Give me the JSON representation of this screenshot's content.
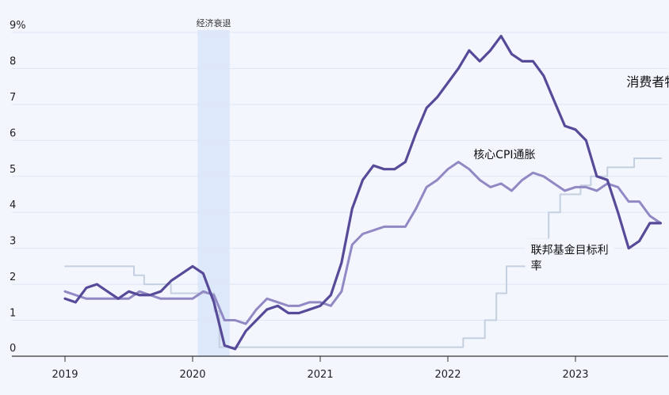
{
  "chart_data": {
    "type": "line",
    "x_unit": "year",
    "xlim": [
      2018.85,
      2023.85
    ],
    "ylim": [
      0,
      9
    ],
    "x_ticks": [
      {
        "value": 2019,
        "label": "2019"
      },
      {
        "value": 2020,
        "label": "2020"
      },
      {
        "value": 2021,
        "label": "2021"
      },
      {
        "value": 2022,
        "label": "2022"
      },
      {
        "value": 2023,
        "label": "2023"
      }
    ],
    "y_ticks": [
      {
        "value": 0,
        "label": "0"
      },
      {
        "value": 1,
        "label": "1"
      },
      {
        "value": 2,
        "label": "2"
      },
      {
        "value": 3,
        "label": "3"
      },
      {
        "value": 4,
        "label": "4"
      },
      {
        "value": 5,
        "label": "5"
      },
      {
        "value": 6,
        "label": "6"
      },
      {
        "value": 7,
        "label": "7"
      },
      {
        "value": 8,
        "label": "8"
      },
      {
        "value": 9,
        "label": "9%"
      }
    ],
    "grid": "horizontal",
    "recession": {
      "label": "经济衰退",
      "x_start": 2020.04,
      "x_end": 2020.29,
      "color": "#dde8fb"
    },
    "series": [
      {
        "name": "消费者物价指数",
        "color": "#574a99",
        "stroke": "thick",
        "step": false,
        "label_pos": [
          2023.4,
          7.5
        ],
        "label_size": "big",
        "points": [
          [
            2019.0,
            1.6
          ],
          [
            2019.083,
            1.5
          ],
          [
            2019.167,
            1.9
          ],
          [
            2019.25,
            2.0
          ],
          [
            2019.333,
            1.8
          ],
          [
            2019.417,
            1.6
          ],
          [
            2019.5,
            1.8
          ],
          [
            2019.583,
            1.7
          ],
          [
            2019.667,
            1.7
          ],
          [
            2019.75,
            1.8
          ],
          [
            2019.833,
            2.1
          ],
          [
            2019.917,
            2.3
          ],
          [
            2020.0,
            2.5
          ],
          [
            2020.083,
            2.3
          ],
          [
            2020.167,
            1.5
          ],
          [
            2020.25,
            0.3
          ],
          [
            2020.333,
            0.2
          ],
          [
            2020.417,
            0.7
          ],
          [
            2020.5,
            1.0
          ],
          [
            2020.583,
            1.3
          ],
          [
            2020.667,
            1.4
          ],
          [
            2020.75,
            1.2
          ],
          [
            2020.833,
            1.2
          ],
          [
            2020.917,
            1.3
          ],
          [
            2021.0,
            1.4
          ],
          [
            2021.083,
            1.7
          ],
          [
            2021.167,
            2.6
          ],
          [
            2021.25,
            4.1
          ],
          [
            2021.333,
            4.9
          ],
          [
            2021.417,
            5.3
          ],
          [
            2021.5,
            5.2
          ],
          [
            2021.583,
            5.2
          ],
          [
            2021.667,
            5.4
          ],
          [
            2021.75,
            6.2
          ],
          [
            2021.833,
            6.9
          ],
          [
            2021.917,
            7.2
          ],
          [
            2022.0,
            7.6
          ],
          [
            2022.083,
            8.0
          ],
          [
            2022.167,
            8.5
          ],
          [
            2022.25,
            8.2
          ],
          [
            2022.333,
            8.5
          ],
          [
            2022.417,
            8.9
          ],
          [
            2022.5,
            8.4
          ],
          [
            2022.583,
            8.2
          ],
          [
            2022.667,
            8.2
          ],
          [
            2022.75,
            7.8
          ],
          [
            2022.833,
            7.1
          ],
          [
            2022.917,
            6.4
          ],
          [
            2023.0,
            6.3
          ],
          [
            2023.083,
            6.0
          ],
          [
            2023.167,
            5.0
          ],
          [
            2023.25,
            4.9
          ],
          [
            2023.333,
            4.0
          ],
          [
            2023.417,
            3.0
          ],
          [
            2023.5,
            3.2
          ],
          [
            2023.583,
            3.7
          ],
          [
            2023.667,
            3.7
          ]
        ]
      },
      {
        "name": "核心CPI通胀",
        "color": "#9089c4",
        "stroke": "medium",
        "step": false,
        "label_pos": [
          2022.2,
          5.5
        ],
        "label_size": "normal",
        "points": [
          [
            2019.0,
            1.8
          ],
          [
            2019.083,
            1.7
          ],
          [
            2019.167,
            1.6
          ],
          [
            2019.25,
            1.6
          ],
          [
            2019.333,
            1.6
          ],
          [
            2019.417,
            1.6
          ],
          [
            2019.5,
            1.6
          ],
          [
            2019.583,
            1.8
          ],
          [
            2019.667,
            1.7
          ],
          [
            2019.75,
            1.6
          ],
          [
            2019.833,
            1.6
          ],
          [
            2019.917,
            1.6
          ],
          [
            2020.0,
            1.6
          ],
          [
            2020.083,
            1.8
          ],
          [
            2020.167,
            1.7
          ],
          [
            2020.25,
            1.0
          ],
          [
            2020.333,
            1.0
          ],
          [
            2020.417,
            0.9
          ],
          [
            2020.5,
            1.3
          ],
          [
            2020.583,
            1.6
          ],
          [
            2020.667,
            1.5
          ],
          [
            2020.75,
            1.4
          ],
          [
            2020.833,
            1.4
          ],
          [
            2020.917,
            1.5
          ],
          [
            2021.0,
            1.5
          ],
          [
            2021.083,
            1.4
          ],
          [
            2021.167,
            1.8
          ],
          [
            2021.25,
            3.1
          ],
          [
            2021.333,
            3.4
          ],
          [
            2021.417,
            3.5
          ],
          [
            2021.5,
            3.6
          ],
          [
            2021.583,
            3.6
          ],
          [
            2021.667,
            3.6
          ],
          [
            2021.75,
            4.1
          ],
          [
            2021.833,
            4.7
          ],
          [
            2021.917,
            4.9
          ],
          [
            2022.0,
            5.2
          ],
          [
            2022.083,
            5.4
          ],
          [
            2022.167,
            5.2
          ],
          [
            2022.25,
            4.9
          ],
          [
            2022.333,
            4.7
          ],
          [
            2022.417,
            4.8
          ],
          [
            2022.5,
            4.6
          ],
          [
            2022.583,
            4.9
          ],
          [
            2022.667,
            5.1
          ],
          [
            2022.75,
            5.0
          ],
          [
            2022.833,
            4.8
          ],
          [
            2022.917,
            4.6
          ],
          [
            2023.0,
            4.7
          ],
          [
            2023.083,
            4.7
          ],
          [
            2023.167,
            4.6
          ],
          [
            2023.25,
            4.8
          ],
          [
            2023.333,
            4.7
          ],
          [
            2023.417,
            4.3
          ],
          [
            2023.5,
            4.3
          ],
          [
            2023.583,
            3.9
          ],
          [
            2023.667,
            3.7
          ]
        ]
      },
      {
        "name": "联邦基金目标利率",
        "label_lines": [
          "联邦基金目标利",
          "率"
        ],
        "color": "#c4cfe0",
        "stroke": "thin",
        "step": true,
        "label_pos": [
          2022.65,
          2.85
        ],
        "label_size": "normal",
        "points": [
          [
            2019.0,
            2.5
          ],
          [
            2019.54,
            2.25
          ],
          [
            2019.62,
            2.0
          ],
          [
            2019.83,
            1.75
          ],
          [
            2020.17,
            1.25
          ],
          [
            2020.21,
            0.25
          ],
          [
            2022.12,
            0.5
          ],
          [
            2022.29,
            1.0
          ],
          [
            2022.38,
            1.75
          ],
          [
            2022.46,
            2.5
          ],
          [
            2022.62,
            3.25
          ],
          [
            2022.79,
            4.0
          ],
          [
            2022.88,
            4.5
          ],
          [
            2023.04,
            4.75
          ],
          [
            2023.12,
            5.0
          ],
          [
            2023.25,
            5.25
          ],
          [
            2023.46,
            5.5
          ],
          [
            2023.67,
            5.5
          ]
        ]
      }
    ]
  }
}
